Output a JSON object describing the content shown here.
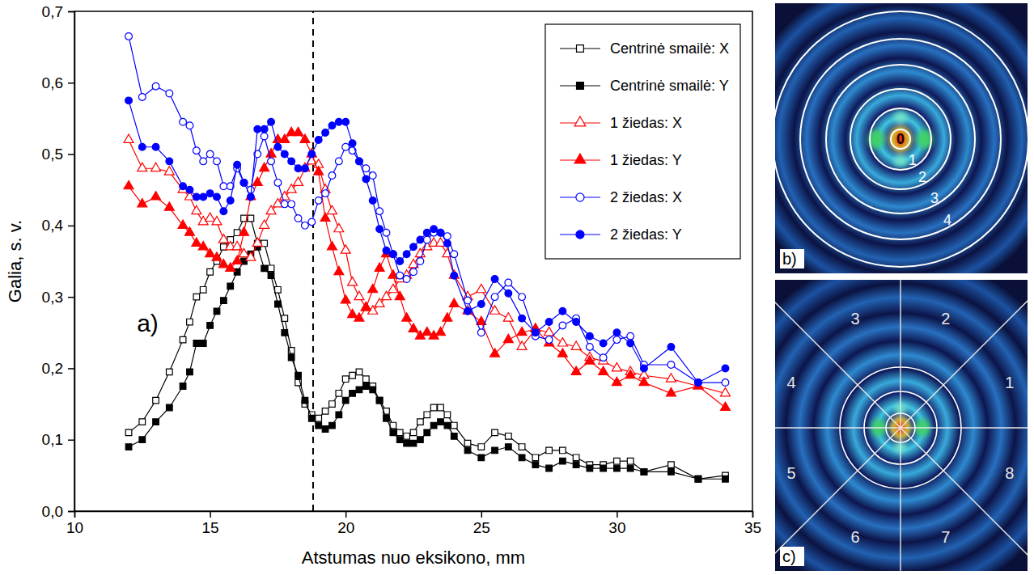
{
  "chart_data": {
    "type": "line",
    "x_label": "Atstumas nuo eksikono, mm",
    "y_label": "Galia, s. v.",
    "panel_label": "a)",
    "xlim": [
      10,
      35
    ],
    "xticks": [
      10,
      15,
      20,
      25,
      30,
      35
    ],
    "ylim": [
      0,
      0.7
    ],
    "yticks": [
      {
        "value": 0,
        "label": "0,0"
      },
      {
        "value": 0.1,
        "label": "0,1"
      },
      {
        "value": 0.2,
        "label": "0,2"
      },
      {
        "value": 0.3,
        "label": "0,3"
      },
      {
        "value": 0.4,
        "label": "0,4"
      },
      {
        "value": 0.5,
        "label": "0,5"
      },
      {
        "value": 0.6,
        "label": "0,6"
      },
      {
        "value": 0.7,
        "label": "0,7"
      }
    ],
    "grid": false,
    "legend": "top-right",
    "reference_lines": [
      {
        "x": 18.8,
        "line_style": "dashed"
      }
    ],
    "x": [
      12,
      12.5,
      13,
      13.5,
      14,
      14.25,
      14.5,
      14.75,
      15,
      15.25,
      15.5,
      15.75,
      16,
      16.25,
      16.5,
      16.75,
      17,
      17.25,
      17.5,
      17.75,
      18,
      18.25,
      18.5,
      18.75,
      19,
      19.25,
      19.5,
      19.75,
      20,
      20.25,
      20.5,
      20.75,
      21,
      21.25,
      21.5,
      21.75,
      22,
      22.25,
      22.5,
      22.75,
      23,
      23.25,
      23.5,
      23.75,
      24,
      24.5,
      25,
      25.5,
      26,
      26.5,
      27,
      27.5,
      28,
      28.5,
      29,
      29.5,
      30,
      30.5,
      31,
      32,
      33,
      34
    ],
    "series": [
      {
        "name": "Centrinė smailė: X",
        "color": "#000000",
        "marker": "square-open",
        "values": [
          0.11,
          0.125,
          0.155,
          0.195,
          0.24,
          0.265,
          0.3,
          0.31,
          0.335,
          0.35,
          0.37,
          0.38,
          0.39,
          0.41,
          0.41,
          0.375,
          0.375,
          0.34,
          0.31,
          0.27,
          0.225,
          0.18,
          0.15,
          0.135,
          0.13,
          0.14,
          0.15,
          0.165,
          0.185,
          0.19,
          0.195,
          0.185,
          0.175,
          0.155,
          0.14,
          0.12,
          0.11,
          0.105,
          0.11,
          0.125,
          0.135,
          0.145,
          0.145,
          0.135,
          0.12,
          0.095,
          0.09,
          0.11,
          0.105,
          0.09,
          0.075,
          0.085,
          0.085,
          0.075,
          0.065,
          0.065,
          0.07,
          0.07,
          0.055,
          0.065,
          0.045,
          0.05
        ]
      },
      {
        "name": "Centrinė smailė: Y",
        "color": "#000000",
        "marker": "square",
        "values": [
          0.09,
          0.1,
          0.125,
          0.145,
          0.175,
          0.195,
          0.235,
          0.235,
          0.26,
          0.28,
          0.295,
          0.315,
          0.335,
          0.35,
          0.36,
          0.37,
          0.34,
          0.33,
          0.29,
          0.25,
          0.215,
          0.19,
          0.155,
          0.13,
          0.12,
          0.115,
          0.12,
          0.135,
          0.155,
          0.165,
          0.17,
          0.175,
          0.17,
          0.155,
          0.13,
          0.11,
          0.1,
          0.095,
          0.095,
          0.1,
          0.11,
          0.12,
          0.125,
          0.12,
          0.105,
          0.085,
          0.075,
          0.085,
          0.09,
          0.075,
          0.065,
          0.06,
          0.07,
          0.065,
          0.06,
          0.06,
          0.06,
          0.06,
          0.055,
          0.055,
          0.045,
          0.045
        ]
      },
      {
        "name": "1 žiedas: X",
        "color": "#ff0000",
        "marker": "triangle-open",
        "values": [
          0.52,
          0.48,
          0.48,
          0.475,
          0.45,
          0.44,
          0.42,
          0.405,
          0.41,
          0.405,
          0.38,
          0.37,
          0.37,
          0.36,
          0.355,
          0.375,
          0.4,
          0.42,
          0.43,
          0.44,
          0.45,
          0.46,
          0.48,
          0.49,
          0.485,
          0.45,
          0.42,
          0.395,
          0.365,
          0.32,
          0.3,
          0.285,
          0.28,
          0.29,
          0.3,
          0.31,
          0.325,
          0.33,
          0.345,
          0.36,
          0.37,
          0.375,
          0.375,
          0.36,
          0.33,
          0.3,
          0.31,
          0.28,
          0.27,
          0.23,
          0.255,
          0.25,
          0.235,
          0.23,
          0.215,
          0.21,
          0.2,
          0.195,
          0.19,
          0.185,
          0.175,
          0.165
        ]
      },
      {
        "name": "1 žiedas: Y",
        "color": "#ff0000",
        "marker": "triangle",
        "values": [
          0.455,
          0.43,
          0.44,
          0.425,
          0.4,
          0.39,
          0.375,
          0.37,
          0.36,
          0.355,
          0.345,
          0.34,
          0.35,
          0.39,
          0.44,
          0.46,
          0.48,
          0.5,
          0.52,
          0.52,
          0.53,
          0.53,
          0.52,
          0.5,
          0.475,
          0.41,
          0.37,
          0.335,
          0.295,
          0.275,
          0.27,
          0.285,
          0.31,
          0.34,
          0.36,
          0.33,
          0.3,
          0.27,
          0.255,
          0.245,
          0.25,
          0.245,
          0.25,
          0.27,
          0.29,
          0.28,
          0.265,
          0.22,
          0.24,
          0.25,
          0.255,
          0.235,
          0.22,
          0.195,
          0.21,
          0.195,
          0.18,
          0.19,
          0.18,
          0.165,
          0.175,
          0.145
        ]
      },
      {
        "name": "2 žiedas: X",
        "color": "#0000ff",
        "marker": "circle-open",
        "values": [
          0.665,
          0.58,
          0.595,
          0.585,
          0.545,
          0.54,
          0.505,
          0.49,
          0.5,
          0.49,
          0.455,
          0.455,
          0.48,
          0.46,
          0.45,
          0.5,
          0.525,
          0.49,
          0.46,
          0.43,
          0.43,
          0.41,
          0.4,
          0.405,
          0.435,
          0.445,
          0.47,
          0.49,
          0.51,
          0.505,
          0.49,
          0.48,
          0.47,
          0.42,
          0.39,
          0.36,
          0.33,
          0.325,
          0.335,
          0.35,
          0.38,
          0.39,
          0.39,
          0.385,
          0.36,
          0.295,
          0.25,
          0.3,
          0.32,
          0.3,
          0.245,
          0.24,
          0.26,
          0.27,
          0.23,
          0.215,
          0.24,
          0.245,
          0.205,
          0.205,
          0.18,
          0.18
        ]
      },
      {
        "name": "2 žiedas: Y",
        "color": "#0000ff",
        "marker": "circle",
        "values": [
          0.575,
          0.51,
          0.51,
          0.49,
          0.455,
          0.45,
          0.44,
          0.44,
          0.445,
          0.44,
          0.42,
          0.435,
          0.485,
          0.46,
          0.44,
          0.535,
          0.535,
          0.545,
          0.51,
          0.5,
          0.49,
          0.48,
          0.48,
          0.5,
          0.52,
          0.53,
          0.54,
          0.545,
          0.545,
          0.515,
          0.49,
          0.465,
          0.435,
          0.395,
          0.365,
          0.36,
          0.35,
          0.36,
          0.37,
          0.38,
          0.39,
          0.395,
          0.39,
          0.375,
          0.33,
          0.28,
          0.29,
          0.325,
          0.305,
          0.27,
          0.25,
          0.265,
          0.28,
          0.265,
          0.245,
          0.235,
          0.25,
          0.235,
          0.2,
          0.23,
          0.18,
          0.2
        ]
      }
    ]
  },
  "panels": [
    {
      "label": "b)",
      "ring_labels": [
        "0",
        "1",
        "2",
        "3",
        "4"
      ]
    },
    {
      "label": "c)",
      "sector_labels": [
        "1",
        "2",
        "3",
        "4",
        "5",
        "6",
        "7",
        "8"
      ]
    }
  ]
}
